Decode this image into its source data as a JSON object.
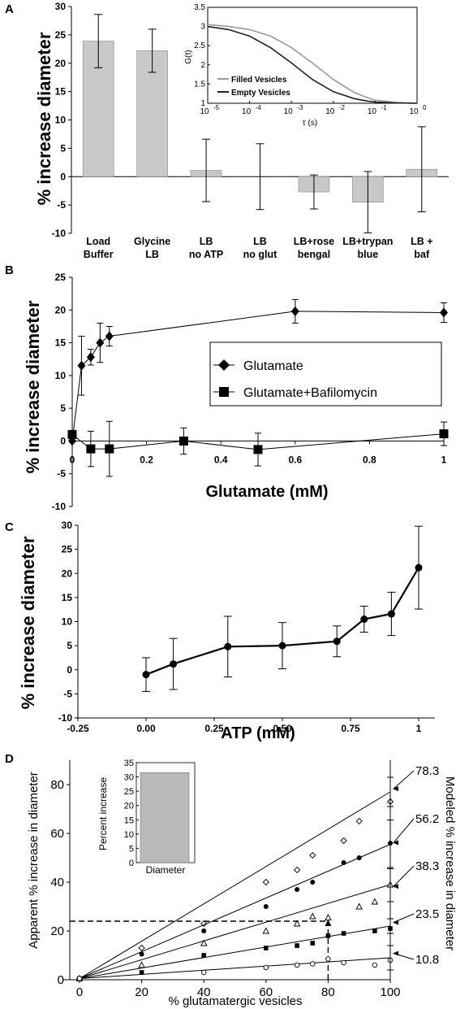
{
  "chart_data": [
    {
      "panel": "A",
      "type": "bar",
      "ylabel": "% increase diameter",
      "ylim": [
        -10,
        30
      ],
      "yticks": [
        "-10",
        "-5",
        "0",
        "5",
        "10",
        "15",
        "20",
        "25",
        "30"
      ],
      "categories": [
        "Load\nBuffer",
        "Glycine\nLB",
        "LB\nno ATP",
        "LB\nno glut",
        "LB+rose\nbengal",
        "LB+trypan\nblue",
        "LB +\nbaf"
      ],
      "values": [
        23.9,
        22.2,
        1.1,
        0.0,
        -2.7,
        -4.5,
        1.3
      ],
      "errors": [
        4.7,
        3.8,
        5.5,
        5.8,
        3.0,
        5.4,
        7.5
      ],
      "bar_color": "#c8c8c8",
      "inset": {
        "type": "line",
        "ylabel": "G(t)",
        "xlabel": "τ (s)",
        "ylim": [
          1,
          3.5
        ],
        "yticks": [
          "1",
          "1.5",
          "2",
          "2.5",
          "3",
          "3.5"
        ],
        "xticks": [
          "10",
          "10",
          "10",
          "10",
          "10",
          "10"
        ],
        "xtick_exponents": [
          "-5",
          "-4",
          "-3",
          "-2",
          "-1",
          "0"
        ],
        "x_log10": [
          -5,
          -4,
          -3,
          -2,
          -1,
          0
        ],
        "series": [
          {
            "name": "Filled Vesicles",
            "color": "#9a9a9a",
            "x_log10": [
              -5,
              -4.5,
              -4,
              -3.5,
              -3,
              -2.5,
              -2,
              -1.5,
              -1.2,
              -1,
              -0.5,
              0
            ],
            "y": [
              3.05,
              3.0,
              2.92,
              2.75,
              2.45,
              2.05,
              1.62,
              1.28,
              1.15,
              1.08,
              1.02,
              1.0
            ]
          },
          {
            "name": "Empty Vesicles",
            "color": "#222222",
            "x_log10": [
              -5,
              -4.5,
              -4,
              -3.5,
              -3,
              -2.5,
              -2,
              -1.5,
              -1.2,
              -1,
              -0.5,
              0
            ],
            "y": [
              3.0,
              2.92,
              2.75,
              2.45,
              2.05,
              1.62,
              1.3,
              1.12,
              1.06,
              1.03,
              1.01,
              1.0
            ]
          }
        ]
      }
    },
    {
      "panel": "B",
      "type": "line",
      "xlabel": "Glutamate (mM)",
      "ylabel": "% increase diameter",
      "xlim": [
        0,
        1
      ],
      "ylim": [
        -10,
        25
      ],
      "xticks": [
        "0",
        "0.2",
        "0.4",
        "0.6",
        "0.8",
        "1"
      ],
      "yticks": [
        "-10",
        "-5",
        "0",
        "5",
        "10",
        "15",
        "20",
        "25"
      ],
      "series": [
        {
          "name": "Glutamate",
          "marker": "diamond",
          "x": [
            0,
            0.025,
            0.05,
            0.075,
            0.1,
            0.6,
            1.0
          ],
          "y": [
            0.0,
            11.5,
            12.8,
            15.0,
            16.0,
            19.8,
            19.6
          ],
          "errors": [
            0,
            4.5,
            1.2,
            3.0,
            1.5,
            1.8,
            1.5
          ]
        },
        {
          "name": "Glutamate+Bafilomycin",
          "marker": "square",
          "x": [
            0,
            0.05,
            0.1,
            0.3,
            0.5,
            1.0
          ],
          "y": [
            1.0,
            -1.2,
            -1.2,
            0.0,
            -1.3,
            1.1
          ],
          "errors": [
            0,
            2.7,
            4.2,
            2.0,
            2.5,
            1.8
          ]
        }
      ]
    },
    {
      "panel": "C",
      "type": "line",
      "xlabel": "ATP (mM)",
      "ylabel": "% increase diameter",
      "xlim": [
        -0.25,
        1
      ],
      "ylim": [
        -10,
        30
      ],
      "xticks": [
        "-0.25",
        "0.00",
        "0.25",
        "0.50",
        "0.75",
        "1"
      ],
      "yticks": [
        "-10",
        "-5",
        "0",
        "5",
        "10",
        "15",
        "20",
        "25",
        "30"
      ],
      "series": [
        {
          "marker": "circle",
          "x": [
            0,
            0.1,
            0.3,
            0.5,
            0.7,
            0.8,
            0.9,
            1.0
          ],
          "y": [
            -1.0,
            1.2,
            4.8,
            5.0,
            5.9,
            10.5,
            11.6,
            21.2
          ],
          "errors": [
            3.5,
            5.3,
            6.3,
            4.8,
            3.2,
            2.7,
            4.5,
            8.6
          ]
        }
      ]
    },
    {
      "panel": "D",
      "type": "scatter",
      "xlabel": "% glutamatergic vesicles",
      "ylabel": "Apparent % increase in diameter",
      "ylabel_right": "Modeled % increase in diameter",
      "xlim": [
        0,
        100
      ],
      "ylim": [
        0,
        90
      ],
      "xticks": [
        "0",
        "20",
        "40",
        "60",
        "80",
        "100"
      ],
      "yticks": [
        "0",
        "20",
        "40",
        "60",
        "80"
      ],
      "right_values": [
        "78.3",
        "56.2",
        "38.3",
        "23.5",
        "10.8"
      ],
      "dashed_reference": {
        "x": 80,
        "y": 24
      },
      "series": [
        {
          "marker": "open-diamond",
          "slope": 0.765,
          "x": [
            0,
            20,
            40,
            60,
            70,
            75,
            85,
            90,
            100
          ],
          "y": [
            0.5,
            13,
            23,
            40,
            45,
            51,
            57,
            65,
            73
          ]
        },
        {
          "marker": "filled-circle",
          "slope": 0.55,
          "x": [
            0,
            20,
            40,
            60,
            70,
            75,
            85,
            90,
            100
          ],
          "y": [
            0.5,
            10.5,
            20,
            30,
            37,
            40,
            48,
            50,
            56
          ]
        },
        {
          "marker": "open-triangle",
          "slope": 0.385,
          "x": [
            0,
            20,
            40,
            60,
            70,
            75,
            80,
            90,
            95,
            100
          ],
          "y": [
            0.5,
            6,
            15,
            20,
            23,
            26,
            25.5,
            30,
            32,
            39
          ]
        },
        {
          "marker": "filled-square",
          "slope": 0.215,
          "x": [
            0,
            20,
            40,
            60,
            70,
            75,
            80,
            85,
            95,
            100
          ],
          "y": [
            0.5,
            3,
            10,
            13,
            14,
            15,
            18,
            19,
            20,
            21
          ]
        },
        {
          "marker": "open-circle",
          "slope": 0.085,
          "x": [
            0,
            40,
            60,
            70,
            75,
            80,
            85,
            95,
            100
          ],
          "y": [
            0.5,
            3,
            5,
            6,
            6.5,
            8.5,
            7,
            6,
            8
          ]
        }
      ],
      "inset": {
        "type": "bar",
        "ylabel": "Percent increase",
        "categories": [
          "Diameter"
        ],
        "values": [
          31.5
        ],
        "ylim": [
          0,
          35
        ],
        "yticks": [
          "0",
          "5",
          "10",
          "15",
          "20",
          "25",
          "30",
          "35"
        ],
        "bar_color": "#b9b9b9"
      }
    }
  ],
  "panels": {
    "a": "A",
    "b": "B",
    "c": "C",
    "d": "D"
  }
}
